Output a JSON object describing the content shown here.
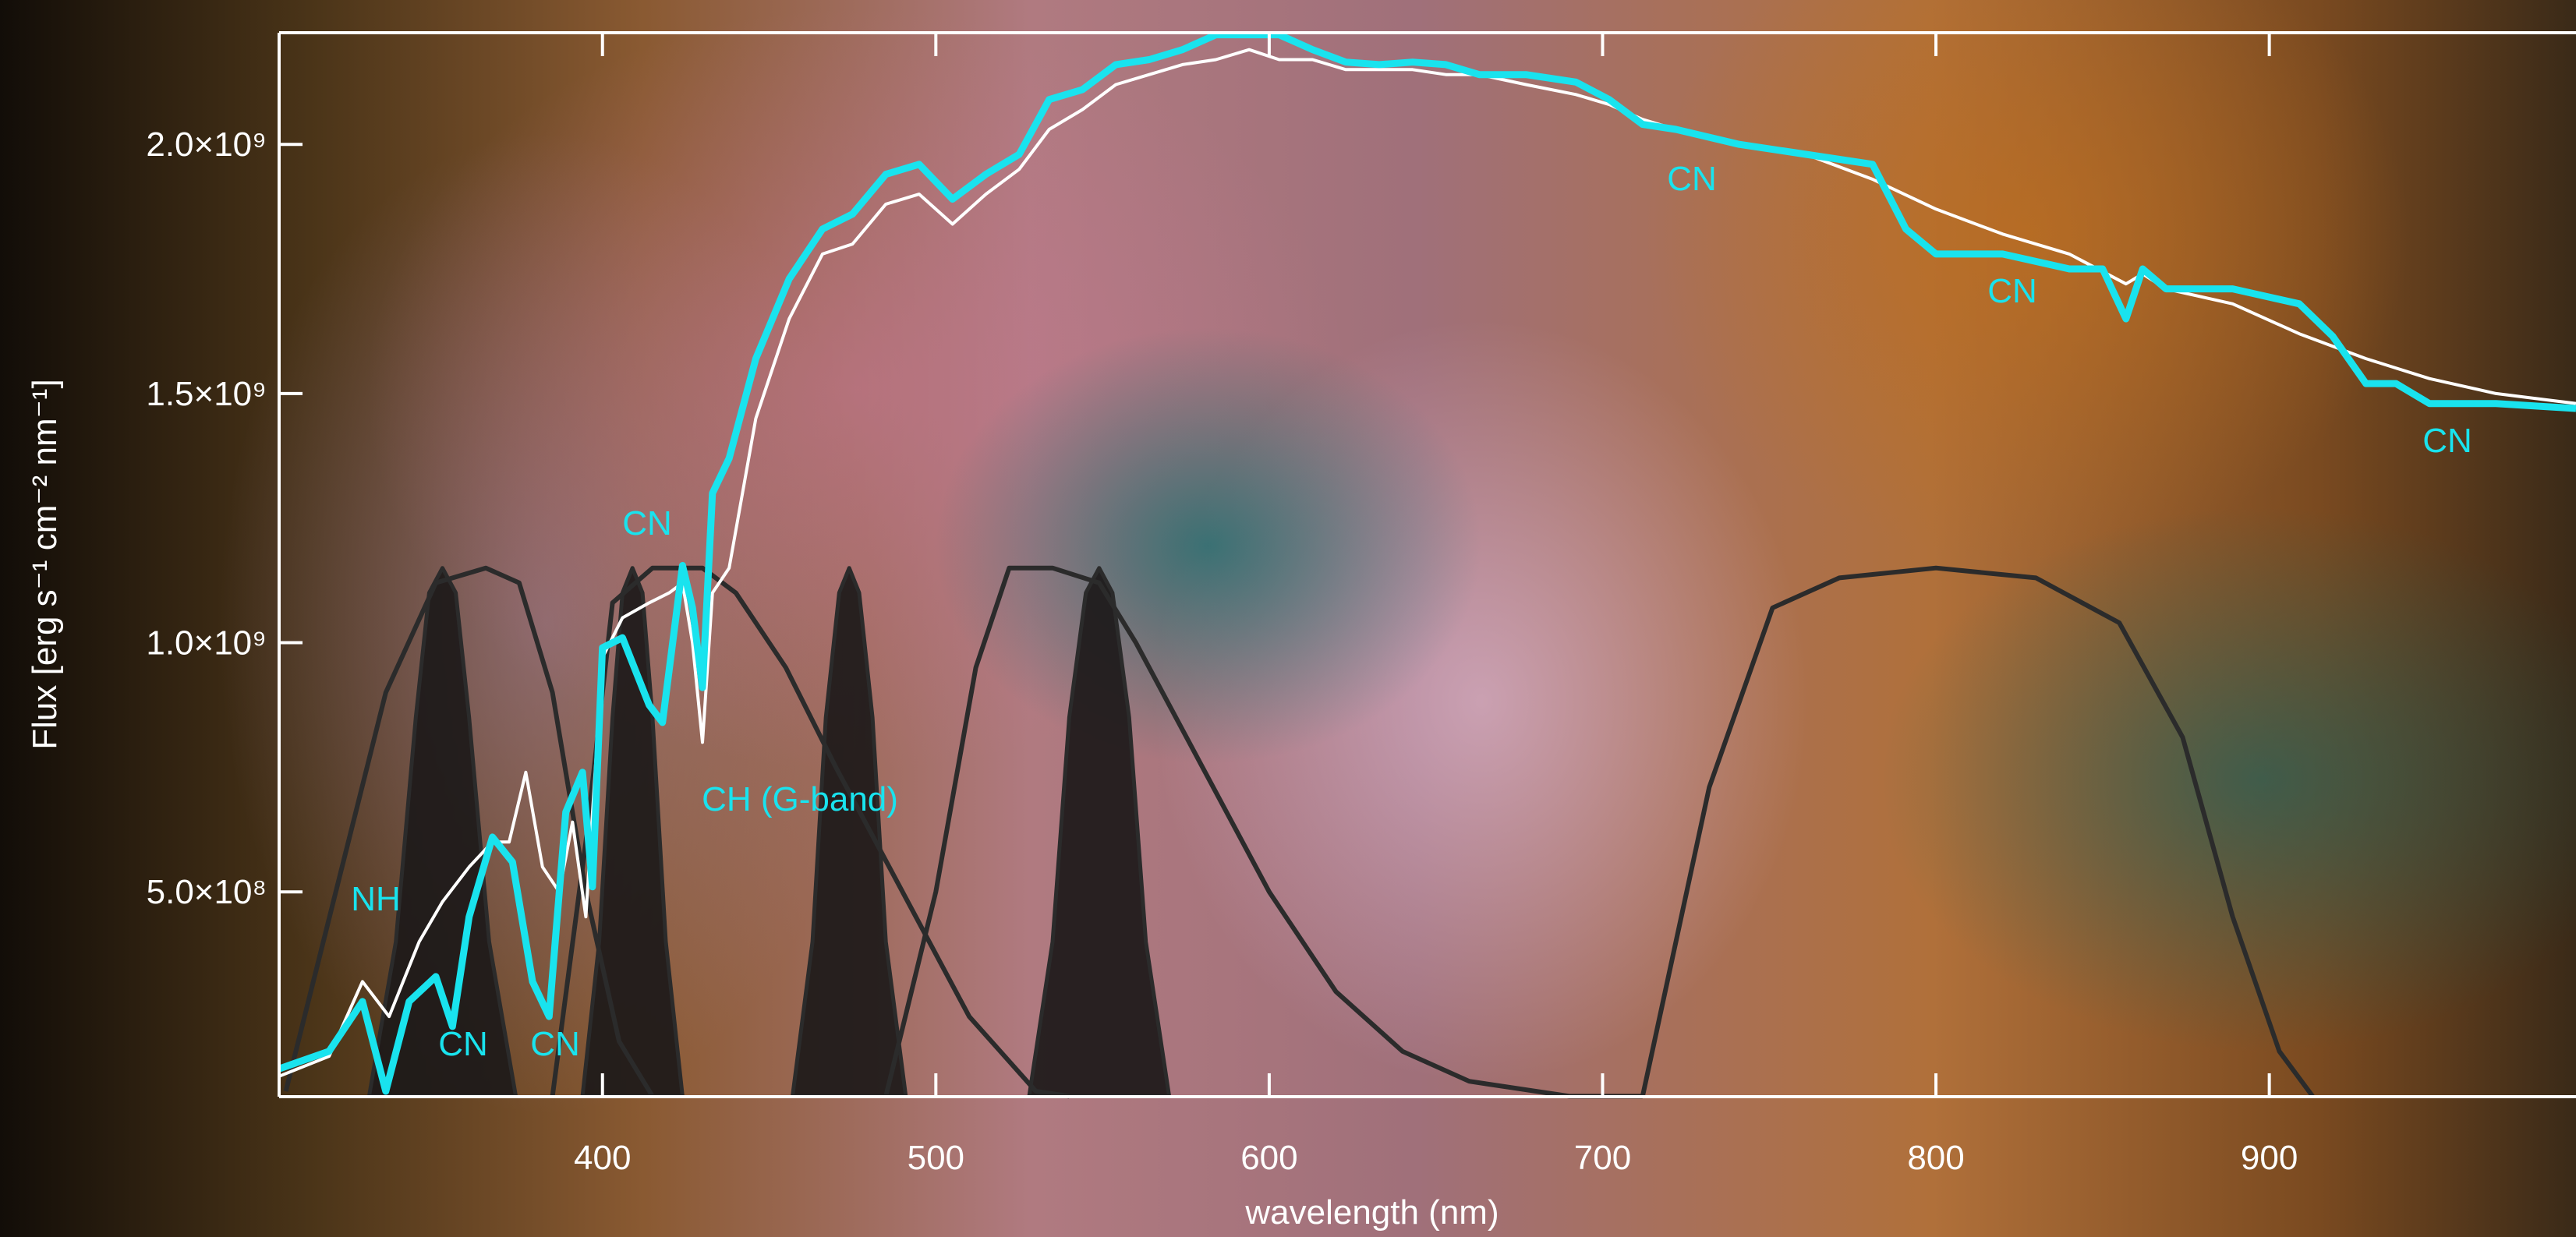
{
  "chart_data": {
    "type": "line",
    "xlabel": "wavelength (nm)",
    "ylabel": "Flux [erg s⁻¹ cm⁻² nm⁻¹]",
    "xlim": [
      303,
      992
    ],
    "ylim": [
      89000000.0,
      2224000000.0
    ],
    "xticks": [
      400,
      500,
      600,
      700,
      800,
      900
    ],
    "yticks": [
      {
        "value": 500000000.0,
        "label": "5.0×10⁸"
      },
      {
        "value": 1000000000.0,
        "label": "1.0×10⁹"
      },
      {
        "value": 1500000000.0,
        "label": "1.5×10⁹"
      },
      {
        "value": 2000000000.0,
        "label": "2.0×10⁹"
      }
    ],
    "annotations": [
      "NH",
      "CN",
      "CN",
      "CN",
      "CH (G-band)",
      "CN",
      "CN",
      "CN"
    ],
    "annotation_color": "#19e3ee",
    "series": [
      {
        "color": "#2b2b2b",
        "fill": "#1c1919",
        "linewidth": 5,
        "x": [
          330,
          338,
          344,
          348,
          352,
          356,
          360,
          366,
          374
        ],
        "values": [
          90000000.0,
          400000000.0,
          850000000.0,
          1100000000.0,
          1150000000.0,
          1100000000.0,
          850000000.0,
          400000000.0,
          90000000.0
        ]
      },
      {
        "color": "#2b2b2b",
        "fill": "#1c1919",
        "linewidth": 5,
        "x": [
          394,
          399,
          403,
          406,
          409,
          412,
          415,
          419,
          424
        ],
        "values": [
          90000000.0,
          400000000.0,
          850000000.0,
          1100000000.0,
          1150000000.0,
          1100000000.0,
          850000000.0,
          400000000.0,
          90000000.0
        ]
      },
      {
        "color": "#2b2b2b",
        "fill": "#1c1919",
        "linewidth": 5,
        "x": [
          457,
          463,
          467,
          471,
          474,
          477,
          481,
          485,
          491
        ],
        "values": [
          90000000.0,
          400000000.0,
          850000000.0,
          1100000000.0,
          1150000000.0,
          1100000000.0,
          850000000.0,
          400000000.0,
          90000000.0
        ]
      },
      {
        "color": "#2b2b2b",
        "fill": "#1c1919",
        "linewidth": 5,
        "x": [
          528,
          535,
          540,
          545,
          549,
          553,
          558,
          563,
          570
        ],
        "values": [
          90000000.0,
          400000000.0,
          850000000.0,
          1100000000.0,
          1150000000.0,
          1100000000.0,
          850000000.0,
          400000000.0,
          90000000.0
        ]
      },
      {
        "color": "#2b2b2b",
        "linewidth": 6,
        "x": [
          305,
          320,
          335,
          350,
          365,
          375,
          385,
          395,
          405,
          415
        ],
        "values": [
          100000000.0,
          500000000.0,
          900000000.0,
          1120000000.0,
          1150000000.0,
          1120000000.0,
          900000000.0,
          500000000.0,
          200000000.0,
          90000000.0
        ]
      },
      {
        "color": "#2b2b2b",
        "linewidth": 6,
        "x": [
          385,
          395,
          403,
          415,
          430,
          440,
          455,
          470,
          490,
          510,
          530,
          540
        ],
        "values": [
          90000000.0,
          600000000.0,
          1080000000.0,
          1150000000.0,
          1150000000.0,
          1100000000.0,
          950000000.0,
          750000000.0,
          500000000.0,
          250000000.0,
          100000000.0,
          90000000.0
        ]
      },
      {
        "color": "#2b2b2b",
        "linewidth": 6,
        "x": [
          485,
          500,
          512,
          522,
          535,
          549,
          560,
          580,
          600,
          620,
          640,
          660,
          690,
          712
        ],
        "values": [
          90000000.0,
          500000000.0,
          950000000.0,
          1150000000.0,
          1150000000.0,
          1120000000.0,
          1000000000.0,
          750000000.0,
          500000000.0,
          300000000.0,
          180000000.0,
          120000000.0,
          90000000.0,
          90000000.0
        ]
      },
      {
        "color": "#2b2b2b",
        "linewidth": 6,
        "x": [
          712,
          732,
          751,
          771,
          800,
          830,
          855,
          874,
          889,
          903,
          913
        ],
        "values": [
          90000000.0,
          710000000.0,
          1070000000.0,
          1130000000.0,
          1150000000.0,
          1130000000.0,
          1040000000.0,
          810000000.0,
          450000000.0,
          180000000.0,
          90000000.0
        ]
      },
      {
        "color": "#ffffff",
        "linewidth": 4,
        "x": [
          303,
          318,
          328,
          336,
          345,
          352,
          360,
          367,
          372,
          377,
          382,
          387,
          391,
          395,
          400,
          406,
          414,
          420,
          424,
          427,
          430,
          433,
          438,
          446,
          456,
          466,
          475,
          485,
          495,
          505,
          515,
          525,
          534,
          544,
          554,
          564,
          574,
          584,
          594,
          603,
          613,
          623,
          633,
          643,
          653,
          663,
          677,
          692,
          702,
          712,
          722,
          741,
          761,
          781,
          800,
          820,
          840,
          857,
          862,
          869,
          889,
          909,
          929,
          948,
          968,
          992
        ],
        "values": [
          130000000.0,
          170000000.0,
          320000000.0,
          250000000.0,
          400000000.0,
          480000000.0,
          550000000.0,
          600000000.0,
          600000000.0,
          740000000.0,
          550000000.0,
          500000000.0,
          640000000.0,
          450000000.0,
          970000000.0,
          1050000000.0,
          1080000000.0,
          1100000000.0,
          1120000000.0,
          1000000000.0,
          800000000.0,
          1100000000.0,
          1150000000.0,
          1450000000.0,
          1650000000.0,
          1780000000.0,
          1800000000.0,
          1880000000.0,
          1900000000.0,
          1840000000.0,
          1900000000.0,
          1950000000.0,
          2030000000.0,
          2070000000.0,
          2120000000.0,
          2140000000.0,
          2160000000.0,
          2170000000.0,
          2190000000.0,
          2170000000.0,
          2170000000.0,
          2150000000.0,
          2150000000.0,
          2150000000.0,
          2140000000.0,
          2140000000.0,
          2120000000.0,
          2100000000.0,
          2080000000.0,
          2050000000.0,
          2030000000.0,
          2000000000.0,
          1980000000.0,
          1930000000.0,
          1870000000.0,
          1820000000.0,
          1780000000.0,
          1720000000.0,
          1740000000.0,
          1710000000.0,
          1680000000.0,
          1620000000.0,
          1570000000.0,
          1530000000.0,
          1500000000.0,
          1480000000.0
        ]
      },
      {
        "color": "#19e3ee",
        "linewidth": 9,
        "x": [
          303,
          318,
          328,
          335,
          342,
          350,
          355,
          360,
          367,
          373,
          379,
          384,
          389,
          394,
          397,
          400,
          406,
          414,
          418,
          424,
          427,
          430,
          433,
          438,
          446,
          456,
          466,
          475,
          485,
          495,
          505,
          515,
          525,
          534,
          544,
          554,
          564,
          574,
          584,
          594,
          603,
          613,
          623,
          633,
          643,
          653,
          663,
          677,
          692,
          702,
          712,
          722,
          741,
          761,
          781,
          791,
          800,
          820,
          840,
          850,
          857,
          862,
          869,
          889,
          909,
          919,
          929,
          938,
          948,
          968,
          992
        ],
        "values": [
          145000000.0,
          180000000.0,
          280000000.0,
          100000000.0,
          280000000.0,
          330000000.0,
          230000000.0,
          450000000.0,
          610000000.0,
          560000000.0,
          320000000.0,
          250000000.0,
          660000000.0,
          740000000.0,
          510000000.0,
          990000000.0,
          1010000000.0,
          875000000.0,
          840000000.0,
          1155000000.0,
          1070000000.0,
          910000000.0,
          1300000000.0,
          1370000000.0,
          1570000000.0,
          1730000000.0,
          1830000000.0,
          1860000000.0,
          1940000000.0,
          1960000000.0,
          1890000000.0,
          1940000000.0,
          1980000000.0,
          2090000000.0,
          2110000000.0,
          2160000000.0,
          2170000000.0,
          2190000000.0,
          2220000000.0,
          2220000000.0,
          2220000000.0,
          2190000000.0,
          2165000000.0,
          2160000000.0,
          2165000000.0,
          2160000000.0,
          2140000000.0,
          2140000000.0,
          2125000000.0,
          2090000000.0,
          2040000000.0,
          2030000000.0,
          2000000000.0,
          1980000000.0,
          1960000000.0,
          1830000000.0,
          1780000000.0,
          1780000000.0,
          1750000000.0,
          1750000000.0,
          1650000000.0,
          1750000000.0,
          1710000000.0,
          1710000000.0,
          1680000000.0,
          1615000000.0,
          1520000000.0,
          1520000000.0,
          1480000000.0,
          1480000000.0,
          1470000000.0
        ]
      }
    ]
  }
}
